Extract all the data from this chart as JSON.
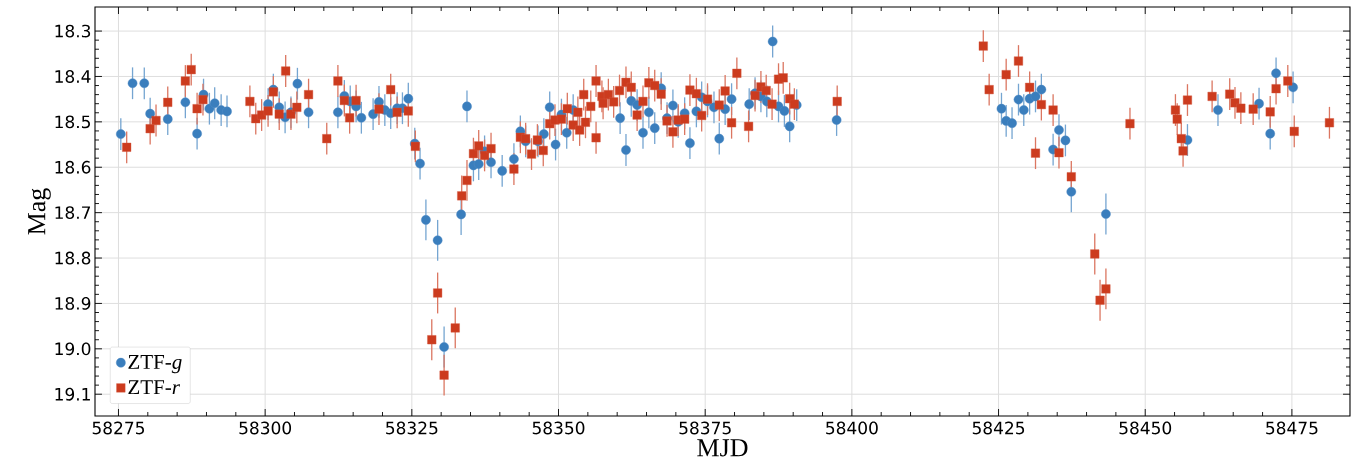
{
  "chart_data": {
    "type": "scatter",
    "xlabel": "MJD",
    "ylabel": "Mag",
    "xlim": [
      58271.0,
      58484.9
    ],
    "ylim": [
      19.148,
      18.247
    ],
    "xticks": [
      58275,
      58300,
      58325,
      58350,
      58375,
      58400,
      58425,
      58450,
      58475
    ],
    "yticks": [
      18.3,
      18.4,
      18.5,
      18.6,
      18.7,
      18.8,
      18.9,
      {
        "value": 19.0,
        "label": "19.0"
      },
      19.1
    ],
    "grid": true,
    "legend": "bottom left",
    "series": [
      {
        "name": "ZTF-*g*",
        "color": "#3a7ebd",
        "marker": "circle",
        "x": [
          58275.4,
          58277.4,
          58279.4,
          58280.4,
          58283.4,
          58286.4,
          58288.4,
          58289.5,
          58290.5,
          58291.4,
          58292.5,
          58293.5,
          58300.5,
          58301.4,
          58302.4,
          58303.4,
          58304.4,
          58305.5,
          58307.4,
          58312.4,
          58313.5,
          58314.5,
          58315.5,
          58316.4,
          58318.4,
          58319.4,
          58320.4,
          58321.4,
          58322.5,
          58323.4,
          58324.4,
          58325.5,
          58326.4,
          58327.4,
          58329.4,
          58330.5,
          58333.4,
          58334.4,
          58335.5,
          58336.4,
          58337.4,
          58338.5,
          58340.4,
          58342.4,
          58343.5,
          58344.4,
          58346.5,
          58347.5,
          58348.5,
          58349.5,
          58350.5,
          58351.4,
          58352.5,
          58360.5,
          58361.5,
          58362.4,
          58363.4,
          58364.4,
          58365.4,
          58366.4,
          58367.5,
          58368.5,
          58369.5,
          58370.4,
          58371.5,
          58372.4,
          58373.5,
          58374.4,
          58375.4,
          58376.5,
          58377.4,
          58378.4,
          58379.5,
          58382.5,
          58383.5,
          58384.5,
          58385.5,
          58386.5,
          58387.5,
          58388.5,
          58389.4,
          58390.6,
          58397.4,
          58425.5,
          58426.3,
          58427.3,
          58428.4,
          58429.3,
          58430.3,
          58431.3,
          58432.3,
          58434.3,
          58435.3,
          58436.4,
          58437.4,
          58443.3,
          58457.2,
          58462.4,
          58469.4,
          58471.3,
          58472.3,
          58475.2
        ],
        "values": [
          18.527,
          18.415,
          18.415,
          18.482,
          18.494,
          18.457,
          18.526,
          18.44,
          18.471,
          18.459,
          18.474,
          18.477,
          18.461,
          18.429,
          18.468,
          18.49,
          18.479,
          18.416,
          18.479,
          18.479,
          18.443,
          18.455,
          18.466,
          18.491,
          18.483,
          18.456,
          18.474,
          18.481,
          18.47,
          18.47,
          18.449,
          18.548,
          18.592,
          18.716,
          18.761,
          18.996,
          18.704,
          18.466,
          18.596,
          18.593,
          18.565,
          18.589,
          18.608,
          18.582,
          18.521,
          18.543,
          18.543,
          18.527,
          18.468,
          18.55,
          18.484,
          18.524,
          18.474,
          18.492,
          18.562,
          18.454,
          18.463,
          18.524,
          18.479,
          18.514,
          18.426,
          18.492,
          18.464,
          18.5,
          18.481,
          18.547,
          18.477,
          18.446,
          18.455,
          18.468,
          18.537,
          18.472,
          18.45,
          18.461,
          18.437,
          18.444,
          18.455,
          18.323,
          18.466,
          18.476,
          18.51,
          18.463,
          18.496,
          18.471,
          18.498,
          18.503,
          18.451,
          18.474,
          18.449,
          18.444,
          18.429,
          18.561,
          18.518,
          18.541,
          18.654,
          18.703,
          18.54,
          18.474,
          18.46,
          18.526,
          18.393,
          18.424
        ],
        "errors": [
          0.035,
          0.035,
          0.035,
          0.035,
          0.035,
          0.035,
          0.035,
          0.035,
          0.035,
          0.035,
          0.035,
          0.035,
          0.035,
          0.035,
          0.035,
          0.035,
          0.035,
          0.035,
          0.035,
          0.035,
          0.035,
          0.035,
          0.035,
          0.035,
          0.035,
          0.035,
          0.035,
          0.035,
          0.035,
          0.035,
          0.035,
          0.035,
          0.035,
          0.045,
          0.045,
          0.045,
          0.045,
          0.035,
          0.035,
          0.035,
          0.035,
          0.035,
          0.035,
          0.035,
          0.035,
          0.035,
          0.035,
          0.035,
          0.035,
          0.035,
          0.035,
          0.035,
          0.035,
          0.035,
          0.035,
          0.035,
          0.035,
          0.035,
          0.035,
          0.035,
          0.035,
          0.035,
          0.035,
          0.035,
          0.035,
          0.035,
          0.035,
          0.035,
          0.035,
          0.035,
          0.035,
          0.035,
          0.035,
          0.035,
          0.035,
          0.035,
          0.035,
          0.035,
          0.035,
          0.035,
          0.035,
          0.035,
          0.035,
          0.035,
          0.035,
          0.035,
          0.035,
          0.035,
          0.035,
          0.035,
          0.035,
          0.035,
          0.035,
          0.035,
          0.045,
          0.045,
          0.035,
          0.035,
          0.035,
          0.035,
          0.035,
          0.035
        ]
      },
      {
        "name": "ZTF-*r*",
        "color": "#cc3b1e",
        "marker": "square",
        "x": [
          58276.4,
          58280.4,
          58281.4,
          58283.4,
          58286.4,
          58287.4,
          58288.4,
          58289.4,
          58297.4,
          58298.4,
          58299.4,
          58300.5,
          58301.4,
          58302.4,
          58303.5,
          58304.4,
          58305.4,
          58307.4,
          58310.5,
          58312.4,
          58313.5,
          58314.4,
          58315.5,
          58319.4,
          58321.4,
          58322.5,
          58324.4,
          58325.6,
          58328.4,
          58329.4,
          58330.5,
          58332.4,
          58333.5,
          58334.4,
          58335.5,
          58336.4,
          58337.4,
          58338.5,
          58342.4,
          58343.5,
          58344.4,
          58345.4,
          58346.4,
          58347.4,
          58348.5,
          58349.4,
          58350.5,
          58351.5,
          58352.5,
          58353.3,
          58353.6,
          58354.3,
          58354.6,
          58355.5,
          58356.4,
          58356.4,
          58357.4,
          58357.6,
          58358.5,
          58359.4,
          58360.4,
          58361.5,
          58362.4,
          58363.4,
          58364.4,
          58365.4,
          58366.4,
          58367.5,
          58368.5,
          58369.5,
          58370.4,
          58371.5,
          58372.4,
          58373.5,
          58374.4,
          58375.4,
          58377.4,
          58378.4,
          58379.5,
          58380.4,
          58382.4,
          58383.5,
          58384.5,
          58385.4,
          58386.4,
          58387.5,
          58388.3,
          58389.4,
          58390.2,
          58397.5,
          58422.4,
          58423.4,
          58426.3,
          58428.4,
          58430.3,
          58431.3,
          58432.3,
          58434.3,
          58435.3,
          58437.4,
          58441.4,
          58442.3,
          58443.3,
          58447.4,
          58455.15,
          58455.45,
          58456.15,
          58456.45,
          58457.2,
          58461.4,
          58464.4,
          58465.3,
          58466.3,
          58468.4,
          58471.3,
          58472.3,
          58474.3,
          58475.4,
          58481.4
        ],
        "values": [
          18.556,
          18.515,
          18.497,
          18.457,
          18.41,
          18.385,
          18.471,
          18.451,
          18.455,
          18.493,
          18.485,
          18.476,
          18.434,
          18.483,
          18.388,
          18.483,
          18.468,
          18.44,
          18.537,
          18.41,
          18.453,
          18.491,
          18.453,
          18.472,
          18.429,
          18.479,
          18.476,
          18.554,
          18.98,
          18.877,
          19.058,
          18.954,
          18.663,
          18.629,
          18.57,
          18.553,
          18.574,
          18.559,
          18.604,
          18.534,
          18.537,
          18.571,
          18.54,
          18.563,
          18.504,
          18.496,
          18.494,
          18.471,
          18.507,
          18.479,
          18.518,
          18.44,
          18.501,
          18.466,
          18.41,
          18.535,
          18.444,
          18.459,
          18.44,
          18.456,
          18.431,
          18.413,
          18.424,
          18.485,
          18.455,
          18.414,
          18.42,
          18.439,
          18.498,
          18.522,
          18.496,
          18.494,
          18.43,
          18.438,
          18.486,
          18.45,
          18.463,
          18.432,
          18.502,
          18.393,
          18.51,
          18.442,
          18.423,
          18.431,
          18.461,
          18.406,
          18.403,
          18.449,
          18.461,
          18.455,
          18.333,
          18.429,
          18.396,
          18.366,
          18.424,
          18.569,
          18.462,
          18.474,
          18.568,
          18.621,
          18.791,
          18.893,
          18.868,
          18.504,
          18.474,
          18.494,
          18.537,
          18.564,
          18.452,
          18.444,
          18.439,
          18.458,
          18.47,
          18.472,
          18.478,
          18.427,
          18.41,
          18.521,
          18.502
        ],
        "errors": [
          0.035,
          0.035,
          0.035,
          0.035,
          0.035,
          0.035,
          0.035,
          0.035,
          0.035,
          0.035,
          0.035,
          0.035,
          0.035,
          0.035,
          0.035,
          0.035,
          0.035,
          0.035,
          0.035,
          0.035,
          0.035,
          0.035,
          0.035,
          0.035,
          0.035,
          0.035,
          0.035,
          0.035,
          0.045,
          0.045,
          0.045,
          0.045,
          0.045,
          0.045,
          0.035,
          0.035,
          0.035,
          0.035,
          0.035,
          0.035,
          0.035,
          0.035,
          0.035,
          0.035,
          0.035,
          0.035,
          0.035,
          0.035,
          0.035,
          0.035,
          0.035,
          0.035,
          0.035,
          0.035,
          0.035,
          0.035,
          0.035,
          0.035,
          0.035,
          0.035,
          0.035,
          0.035,
          0.035,
          0.035,
          0.035,
          0.035,
          0.035,
          0.035,
          0.035,
          0.035,
          0.035,
          0.035,
          0.035,
          0.035,
          0.035,
          0.035,
          0.035,
          0.035,
          0.035,
          0.035,
          0.035,
          0.035,
          0.035,
          0.035,
          0.035,
          0.035,
          0.035,
          0.035,
          0.035,
          0.035,
          0.035,
          0.035,
          0.035,
          0.035,
          0.035,
          0.035,
          0.035,
          0.035,
          0.035,
          0.035,
          0.045,
          0.045,
          0.045,
          0.035,
          0.035,
          0.035,
          0.035,
          0.035,
          0.035,
          0.035,
          0.035,
          0.035,
          0.035,
          0.035,
          0.035,
          0.035,
          0.035,
          0.035,
          0.035
        ]
      }
    ]
  }
}
